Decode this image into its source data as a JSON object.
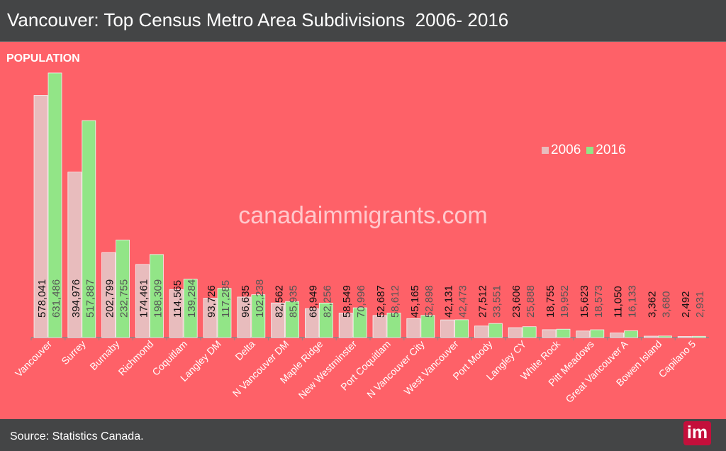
{
  "header": {
    "title": "Vancouver: Top Census Metro Area Subdivisions  2006- 2016"
  },
  "watermark": "canadaimmigrants.com",
  "footer": {
    "source": "Source: Statistics Canada.",
    "logo_text": "im"
  },
  "colors": {
    "background": "#fe6168",
    "series_2006": "#e8bcbd",
    "series_2016": "#92e587",
    "header": "#444546"
  },
  "chart_data": {
    "type": "bar",
    "ylabel": "POPULATION",
    "ylim": [
      0,
      650000
    ],
    "grid": false,
    "legend_position": "top-right",
    "categories": [
      "Vancouver",
      "Surrey",
      "Burnaby",
      "Richmond",
      "Coquitlam",
      "Langley DM",
      "Delta",
      "N Vancouver DM",
      "Maple Ridge",
      "New Westminster",
      "Port Coquitlam",
      "N Vancouver City",
      "West Vancouver",
      "Port Moody",
      "Langley CY",
      "White Rock",
      "Pitt Meadows",
      "Great Vancouver A",
      "Bowen Island",
      "Capilano 5"
    ],
    "series": [
      {
        "name": "2006",
        "values": [
          578041,
          394976,
          202799,
          174461,
          114565,
          93726,
          96635,
          82562,
          68949,
          58549,
          52687,
          45165,
          42131,
          27512,
          23606,
          18755,
          15623,
          11050,
          3362,
          2492
        ]
      },
      {
        "name": "2016",
        "values": [
          631486,
          517887,
          232755,
          198309,
          139284,
          117285,
          102238,
          85935,
          82256,
          70996,
          58612,
          52898,
          42473,
          33551,
          25888,
          19952,
          18573,
          16133,
          3680,
          2931
        ]
      }
    ]
  }
}
